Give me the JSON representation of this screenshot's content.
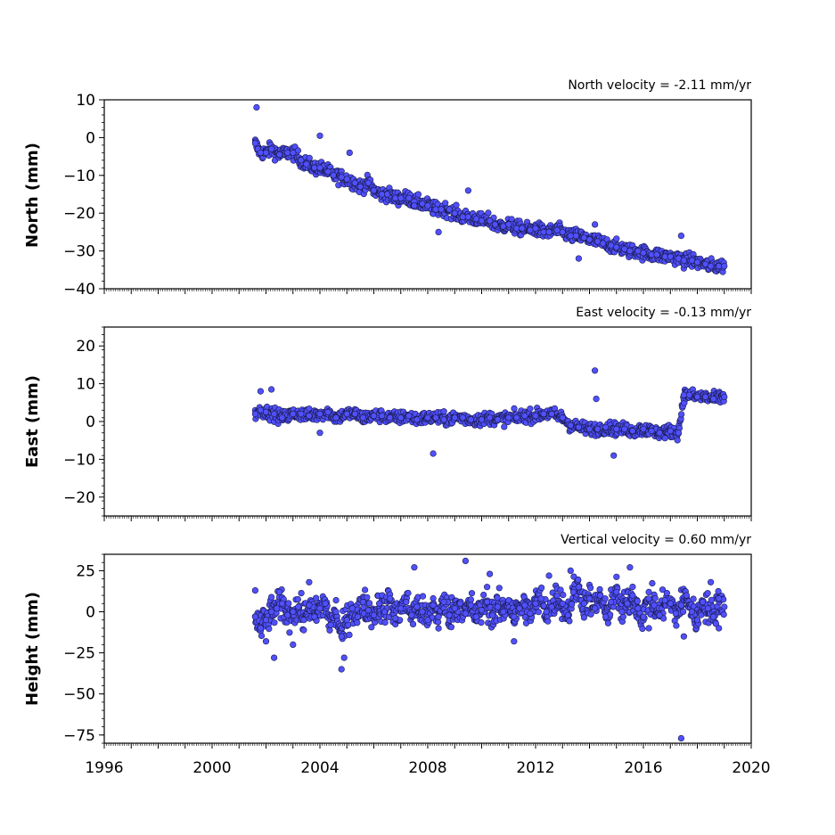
{
  "chart_data": [
    {
      "type": "scatter",
      "title": "North velocity = -2.11 mm/yr",
      "ylabel": "North (mm)",
      "xlim": [
        1996,
        2020
      ],
      "ylim": [
        -40,
        10
      ],
      "yticks": [
        10,
        0,
        -10,
        -20,
        -30,
        -40
      ],
      "ytick_labels": [
        "10",
        "0",
        "−10",
        "−20",
        "−30",
        "−40"
      ],
      "color": "#5050ff",
      "trend": {
        "start": [
          2001.6,
          -1.5
        ],
        "end": [
          2019.0,
          -34.0
        ]
      },
      "series": [
        {
          "x": [
            2001.6,
            2001.7,
            2001.8,
            2002.0,
            2002.2,
            2002.5,
            2002.8,
            2003.0,
            2003.3,
            2003.5,
            2003.8,
            2004.0,
            2004.3,
            2004.5,
            2004.8,
            2005.0,
            2005.3,
            2005.5,
            2005.8,
            2006.0,
            2006.3,
            2006.5,
            2006.8,
            2007.0,
            2007.3,
            2007.5,
            2007.8,
            2008.0,
            2008.3,
            2008.5,
            2008.8,
            2009.0,
            2009.3,
            2009.5,
            2009.8,
            2010.0,
            2010.3,
            2010.5,
            2010.8,
            2011.0,
            2011.3,
            2011.5,
            2011.8,
            2012.0,
            2012.3,
            2012.5,
            2012.8,
            2013.0,
            2013.3,
            2013.5,
            2013.8,
            2014.0,
            2014.3,
            2014.5,
            2014.8,
            2015.0,
            2015.3,
            2015.5,
            2015.8,
            2016.0,
            2016.3,
            2016.5,
            2016.8,
            2017.0,
            2017.3,
            2017.5,
            2017.8,
            2018.0,
            2018.3,
            2018.5,
            2018.8,
            2019.0,
            2001.65,
            2004.0,
            2005.1,
            2007.5,
            2009.5,
            2008.4,
            2013.6,
            2014.2,
            2017.4
          ],
          "y": [
            -1.5,
            -3,
            -4,
            -4,
            -3,
            -4.5,
            -4,
            -4,
            -6,
            -7,
            -8,
            -8,
            -9,
            -10,
            -10.5,
            -11,
            -12,
            -13,
            -12,
            -14,
            -15,
            -15,
            -16,
            -16,
            -16,
            -17,
            -17.5,
            -18,
            -19,
            -19,
            -19,
            -20,
            -21,
            -21,
            -21.5,
            -22,
            -22,
            -23,
            -23.5,
            -23,
            -24,
            -24,
            -24.5,
            -24,
            -25,
            -25,
            -24.5,
            -25,
            -26,
            -26,
            -26.5,
            -27,
            -27.5,
            -28,
            -28.5,
            -29,
            -29.5,
            -30,
            -30,
            -30.5,
            -31,
            -31,
            -31.5,
            -31.5,
            -32,
            -32.5,
            -32.5,
            -33,
            -33.5,
            -34,
            -34,
            -34,
            8,
            0.5,
            -4,
            -18,
            -14,
            -25,
            -32,
            -23,
            -26
          ]
        }
      ]
    },
    {
      "type": "scatter",
      "title": "East velocity = -0.13 mm/yr",
      "ylabel": "East (mm)",
      "xlim": [
        1996,
        2020
      ],
      "ylim": [
        -25,
        25
      ],
      "yticks": [
        20,
        10,
        0,
        -10,
        -20
      ],
      "ytick_labels": [
        "20",
        "10",
        "0",
        "−10",
        "−20"
      ],
      "color": "#5050ff",
      "series": [
        {
          "x": [
            2001.6,
            2001.8,
            2002.0,
            2002.3,
            2002.6,
            2003.0,
            2003.3,
            2003.6,
            2004.0,
            2004.3,
            2004.6,
            2005.0,
            2005.3,
            2005.6,
            2006.0,
            2006.3,
            2006.6,
            2007.0,
            2007.3,
            2007.6,
            2008.0,
            2008.3,
            2008.6,
            2009.0,
            2009.3,
            2009.6,
            2010.0,
            2010.3,
            2010.6,
            2011.0,
            2011.3,
            2011.6,
            2012.0,
            2012.3,
            2012.6,
            2013.0,
            2013.3,
            2013.6,
            2014.0,
            2014.3,
            2014.6,
            2015.0,
            2015.3,
            2015.6,
            2016.0,
            2016.3,
            2016.6,
            2017.0,
            2017.3,
            2017.5,
            2017.7,
            2018.0,
            2018.3,
            2018.6,
            2019.0,
            2001.8,
            2002.2,
            2008.2,
            2014.2,
            2014.25,
            2014.9,
            2004.0
          ],
          "y": [
            2,
            3,
            2.5,
            2,
            1,
            2,
            2,
            1.5,
            2,
            2.5,
            1,
            2,
            2,
            1,
            1.5,
            1.5,
            1,
            1,
            1.5,
            0.5,
            1,
            1,
            0.5,
            1,
            1,
            0.5,
            0.5,
            1,
            0.5,
            1,
            1,
            1.5,
            1.5,
            2,
            2,
            1,
            -1,
            -1.5,
            -2,
            -2,
            -1.5,
            -2,
            -2,
            -2.5,
            -2,
            -2.5,
            -3,
            -2.5,
            -3,
            7,
            7,
            6.5,
            6.5,
            6,
            6.5,
            8,
            8.5,
            -8.5,
            13.5,
            6,
            -9,
            -3
          ]
        }
      ]
    },
    {
      "type": "scatter",
      "title": "Vertical velocity = 0.60 mm/yr",
      "ylabel": "Height (mm)",
      "xlim": [
        1996,
        2020
      ],
      "ylim": [
        -80,
        35
      ],
      "yticks": [
        25,
        0,
        -25,
        -50,
        -75
      ],
      "ytick_labels": [
        "25",
        "0",
        "−25",
        "−50",
        "−75"
      ],
      "color": "#5050ff",
      "series": [
        {
          "x": [
            2001.6,
            2001.8,
            2002.0,
            2002.2,
            2002.4,
            2002.6,
            2002.8,
            2003.0,
            2003.2,
            2003.4,
            2003.6,
            2003.8,
            2004.0,
            2004.2,
            2004.4,
            2004.6,
            2004.8,
            2005.0,
            2005.2,
            2005.4,
            2005.6,
            2005.8,
            2006.0,
            2006.2,
            2006.4,
            2006.6,
            2006.8,
            2007.0,
            2007.2,
            2007.4,
            2007.6,
            2007.8,
            2008.0,
            2008.2,
            2008.4,
            2008.6,
            2008.8,
            2009.0,
            2009.2,
            2009.4,
            2009.6,
            2009.8,
            2010.0,
            2010.2,
            2010.4,
            2010.6,
            2010.8,
            2011.0,
            2011.2,
            2011.4,
            2011.6,
            2011.8,
            2012.0,
            2012.2,
            2012.4,
            2012.6,
            2012.8,
            2013.0,
            2013.2,
            2013.4,
            2013.6,
            2013.8,
            2014.0,
            2014.2,
            2014.4,
            2014.6,
            2014.8,
            2015.0,
            2015.2,
            2015.4,
            2015.6,
            2015.8,
            2016.0,
            2016.2,
            2016.4,
            2016.6,
            2016.8,
            2017.0,
            2017.2,
            2017.4,
            2017.6,
            2017.8,
            2018.0,
            2018.2,
            2018.4,
            2018.6,
            2018.8,
            2019.0,
            2001.6,
            2002.0,
            2002.3,
            2002.5,
            2003.0,
            2003.6,
            2004.8,
            2004.9,
            2007.5,
            2009.4,
            2010.3,
            2011.2,
            2012.5,
            2013.3,
            2015.5,
            2016.2,
            2017.4,
            2017.5,
            2018.5,
            2018.8
          ],
          "y": [
            -3,
            -10,
            -5,
            0,
            2,
            5,
            -2,
            0,
            3,
            -5,
            4,
            -3,
            2,
            5,
            -8,
            0,
            -15,
            -5,
            2,
            -3,
            6,
            1,
            -2,
            5,
            0,
            8,
            -4,
            2,
            6,
            -2,
            3,
            0,
            -5,
            4,
            -3,
            6,
            -2,
            2,
            5,
            -1,
            4,
            -3,
            1,
            6,
            -2,
            3,
            0,
            7,
            -3,
            2,
            4,
            -1,
            5,
            8,
            0,
            3,
            10,
            5,
            -2,
            12,
            15,
            5,
            8,
            2,
            10,
            -3,
            6,
            12,
            0,
            5,
            10,
            2,
            -3,
            8,
            4,
            -2,
            7,
            5,
            -1,
            4,
            10,
            0,
            -5,
            6,
            2,
            -3,
            8,
            3,
            13,
            -18,
            -28,
            12,
            -20,
            18,
            -35,
            -28,
            27,
            31,
            23,
            -18,
            22,
            25,
            27,
            -10,
            -77,
            -15,
            18,
            -10
          ]
        }
      ]
    }
  ],
  "xaxis": {
    "ticks": [
      1996,
      2000,
      2004,
      2008,
      2012,
      2016,
      2020
    ],
    "tick_labels": [
      "1996",
      "2000",
      "2004",
      "2008",
      "2012",
      "2016",
      "2020"
    ]
  }
}
